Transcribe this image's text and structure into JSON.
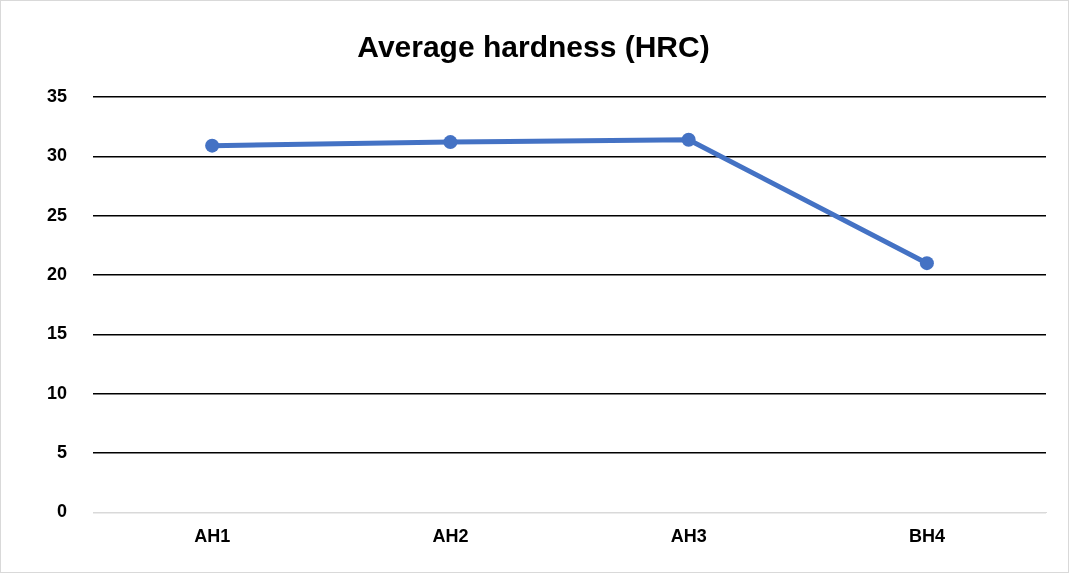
{
  "chart_data": {
    "type": "line",
    "title": "Average hardness (HRC)",
    "categories": [
      "AH1",
      "AH2",
      "AH3",
      "BH4"
    ],
    "series": [
      {
        "color": "#4472c4",
        "values": [
          30.9,
          31.2,
          31.4,
          21
        ]
      }
    ],
    "ylim": [
      0,
      35
    ],
    "yticks": [
      0,
      5,
      10,
      15,
      20,
      25,
      30,
      35
    ],
    "grid": "y",
    "legend": false,
    "marker": "circle",
    "line_style": "solid"
  }
}
